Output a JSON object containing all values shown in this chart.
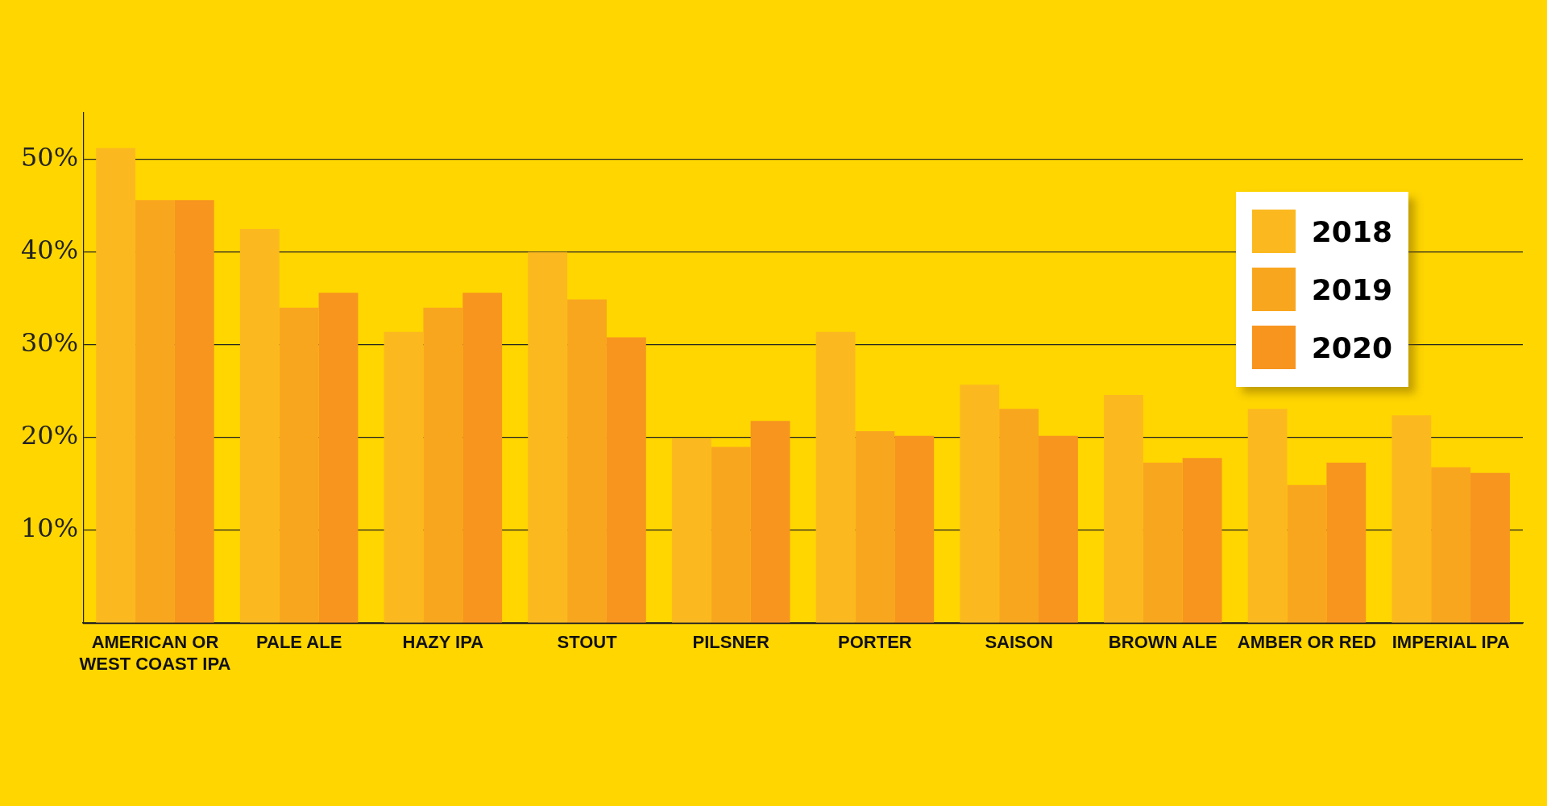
{
  "chart_data": {
    "type": "bar",
    "categories": [
      "AMERICAN OR WEST COAST IPA",
      "PALE ALE",
      "HAZY IPA",
      "STOUT",
      "PILSNER",
      "PORTER",
      "SAISON",
      "BROWN ALE",
      "AMBER OR RED",
      "IMPERIAL IPA"
    ],
    "series": [
      {
        "name": "2018",
        "color": "#fbb91f",
        "values": [
          51.2,
          42.5,
          31.4,
          40.0,
          19.9,
          31.4,
          25.7,
          24.6,
          23.1,
          22.4
        ]
      },
      {
        "name": "2019",
        "color": "#f9a61f",
        "values": [
          45.6,
          34.0,
          34.0,
          34.9,
          19.0,
          20.7,
          23.1,
          17.3,
          14.9,
          16.8
        ]
      },
      {
        "name": "2020",
        "color": "#f7951f",
        "values": [
          45.6,
          35.6,
          35.6,
          30.8,
          21.8,
          20.2,
          20.2,
          17.8,
          17.3,
          16.2
        ]
      }
    ],
    "ylim": [
      0,
      55
    ],
    "yticks": [
      {
        "value": 0,
        "label": null
      },
      {
        "value": 10,
        "label": "10%"
      },
      {
        "value": 20,
        "label": "20%"
      },
      {
        "value": 30,
        "label": "30%"
      },
      {
        "value": 40,
        "label": "40%"
      },
      {
        "value": 50,
        "label": "50%"
      }
    ],
    "grid": "y",
    "legend": "top right"
  }
}
